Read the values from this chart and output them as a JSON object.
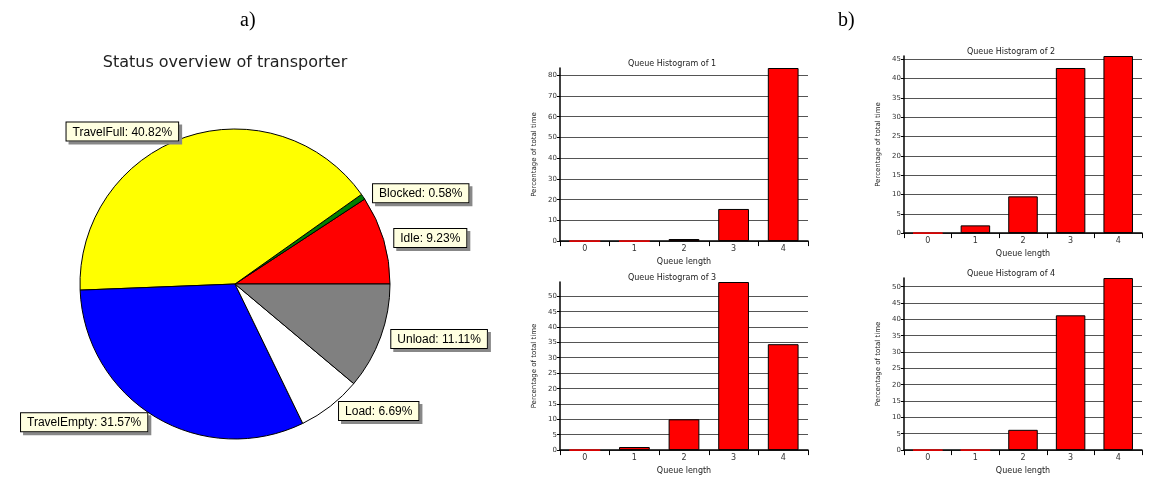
{
  "chart_data": [
    {
      "type": "pie",
      "title": "Status overview of transporter",
      "annotations": [
        "a)"
      ],
      "categories": [
        "Idle",
        "Blocked",
        "TravelFull",
        "TravelEmpty",
        "Load",
        "Unload"
      ],
      "values": [
        9.23,
        0.58,
        40.82,
        31.57,
        6.69,
        11.11
      ],
      "colors": [
        "#ff0000",
        "#008000",
        "#ffff00",
        "#0000ff",
        "#ffffff",
        "#808080"
      ],
      "value_labels": [
        "9.23%",
        "0.58%",
        "40.82%",
        "31.57%",
        "6.69%",
        "11.11%"
      ]
    },
    {
      "type": "bar",
      "title": "Queue Histogram of 1",
      "annotations": [
        "b)"
      ],
      "xlabel": "Queue length",
      "ylabel": "Percentage of total time",
      "categories": [
        "0",
        "1",
        "2",
        "3",
        "4"
      ],
      "values": [
        0,
        0,
        1,
        15.5,
        83.5
      ],
      "color": "#ff0000",
      "ylim": [
        0,
        83.5
      ],
      "yticks": [
        0,
        10,
        20,
        30,
        40,
        50,
        60,
        70,
        80
      ],
      "grid": "y"
    },
    {
      "type": "bar",
      "title": "Queue Histogram of 2",
      "xlabel": "Queue length",
      "ylabel": "Percentage of total time",
      "categories": [
        "0",
        "1",
        "2",
        "3",
        "4"
      ],
      "values": [
        0,
        2,
        9.5,
        42.7,
        45.8
      ],
      "color": "#ff0000",
      "ylim": [
        0,
        45.8
      ],
      "yticks": [
        0,
        5,
        10,
        15,
        20,
        25,
        30,
        35,
        40,
        45
      ],
      "grid": "y"
    },
    {
      "type": "bar",
      "title": "Queue Histogram of 3",
      "xlabel": "Queue length",
      "ylabel": "Percentage of total time",
      "categories": [
        "0",
        "1",
        "2",
        "3",
        "4"
      ],
      "values": [
        0,
        1,
        10,
        54.6,
        34.4
      ],
      "color": "#ff0000",
      "ylim": [
        0,
        54.6
      ],
      "yticks": [
        0,
        5,
        10,
        15,
        20,
        25,
        30,
        35,
        40,
        45,
        50
      ],
      "grid": "y"
    },
    {
      "type": "bar",
      "title": "Queue Histogram of 4",
      "xlabel": "Queue length",
      "ylabel": "Percentage of total time",
      "categories": [
        "0",
        "1",
        "2",
        "3",
        "4"
      ],
      "values": [
        0,
        0,
        6.2,
        41.2,
        52.6
      ],
      "color": "#ff0000",
      "ylim": [
        0,
        52.6
      ],
      "yticks": [
        0,
        5,
        10,
        15,
        20,
        25,
        30,
        35,
        40,
        45,
        50
      ],
      "grid": "y"
    }
  ]
}
